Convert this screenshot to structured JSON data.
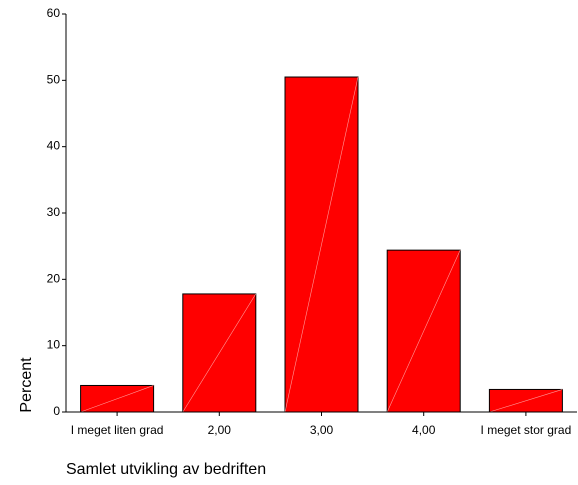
{
  "chart_data": {
    "type": "bar",
    "categories": [
      "I meget liten grad",
      "2,00",
      "3,00",
      "4,00",
      "I meget stor grad"
    ],
    "values": [
      4.0,
      17.8,
      50.5,
      24.4,
      3.4
    ],
    "title": "",
    "xlabel": "Samlet utvikling av bedriften",
    "ylabel": "Percent",
    "ylim": [
      0,
      60
    ],
    "yticks": [
      0,
      10,
      20,
      30,
      40,
      50,
      60
    ],
    "grid": false,
    "legend": "none",
    "bar_color": "#ff0000"
  }
}
